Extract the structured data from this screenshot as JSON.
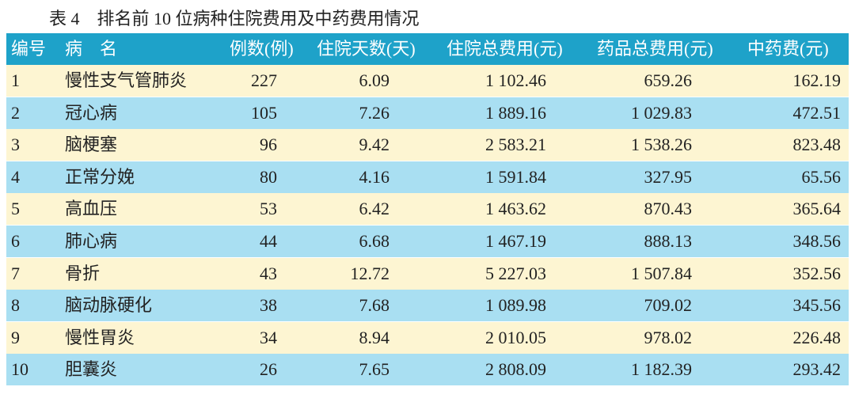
{
  "caption": "表 4　排名前 10 位病种住院费用及中药费用情况",
  "table": {
    "header": [
      "编号",
      "病　名",
      "例数(例)",
      "住院天数(天)",
      "住院总费用(元)",
      "药品总费用(元)",
      "中药费(元)"
    ],
    "rows": [
      [
        "1",
        "慢性支气管肺炎",
        "227",
        "6.09",
        "1 102.46",
        "659.26",
        "162.19"
      ],
      [
        "2",
        "冠心病",
        "105",
        "7.26",
        "1 889.16",
        "1 029.83",
        "472.51"
      ],
      [
        "3",
        "脑梗塞",
        "96",
        "9.42",
        "2 583.21",
        "1 538.26",
        "823.48"
      ],
      [
        "4",
        "正常分娩",
        "80",
        "4.16",
        "1 591.84",
        "327.95",
        "65.56"
      ],
      [
        "5",
        "高血压",
        "53",
        "6.42",
        "1 463.62",
        "870.43",
        "365.64"
      ],
      [
        "6",
        "肺心病",
        "44",
        "6.68",
        "1 467.19",
        "888.13",
        "348.56"
      ],
      [
        "7",
        "骨折",
        "43",
        "12.72",
        "5 227.03",
        "1 507.84",
        "352.56"
      ],
      [
        "8",
        "脑动脉硬化",
        "38",
        "7.68",
        "1 089.98",
        "709.02",
        "345.56"
      ],
      [
        "9",
        "慢性胃炎",
        "34",
        "8.94",
        "2 010.05",
        "978.02",
        "226.48"
      ],
      [
        "10",
        "胆囊炎",
        "26",
        "7.65",
        "2 808.09",
        "1 182.39",
        "293.42"
      ]
    ]
  }
}
